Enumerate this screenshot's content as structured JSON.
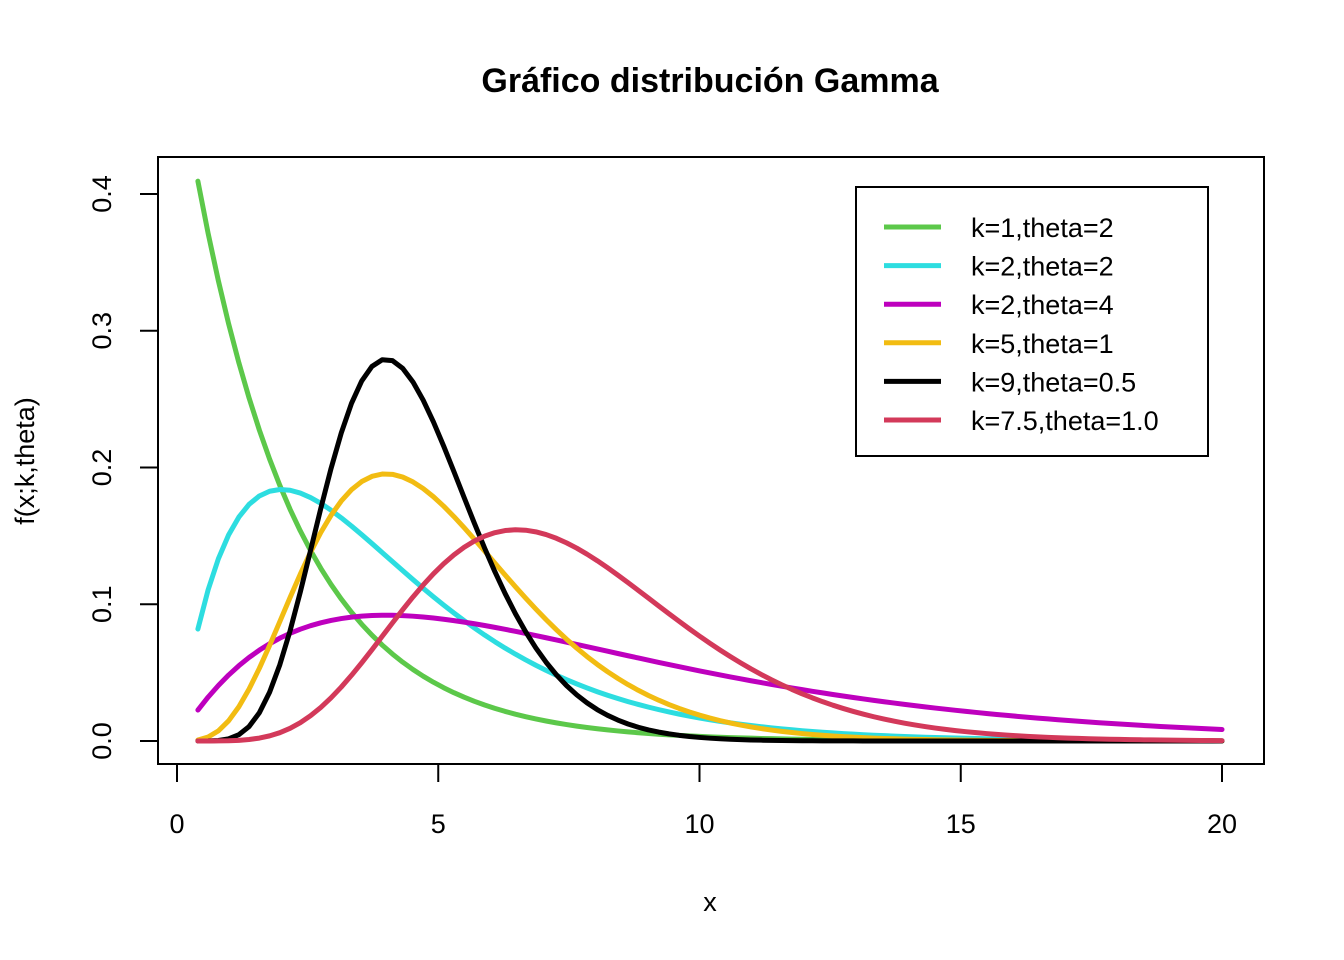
{
  "chart_data": {
    "type": "line",
    "title": "Gráfico distribución Gamma",
    "xlabel": "x",
    "ylabel": "f(x;k,theta)",
    "xlim": [
      0,
      20
    ],
    "ylim": [
      0,
      0.41
    ],
    "x_ticks": [
      "0",
      "5",
      "10",
      "15",
      "20"
    ],
    "y_ticks": [
      "0.0",
      "0.1",
      "0.2",
      "0.3",
      "0.4"
    ],
    "x_domain": [
      0.4,
      20
    ],
    "grid": false,
    "legend_position": "top-right",
    "series": [
      {
        "name": "k=1,theta=2",
        "k": 1,
        "theta": 2,
        "color": "#5CC84A"
      },
      {
        "name": "k=2,theta=2",
        "k": 2,
        "theta": 2,
        "color": "#2DDDE0"
      },
      {
        "name": "k=2,theta=4",
        "k": 2,
        "theta": 4,
        "color": "#BE00BE"
      },
      {
        "name": "k=5,theta=1",
        "k": 5,
        "theta": 1,
        "color": "#F2BC12"
      },
      {
        "name": "k=9,theta=0.5",
        "k": 9,
        "theta": 0.5,
        "color": "#000000"
      },
      {
        "name": "k=7.5,theta=1.0",
        "k": 7.5,
        "theta": 1.0,
        "color": "#D3395A"
      }
    ]
  }
}
